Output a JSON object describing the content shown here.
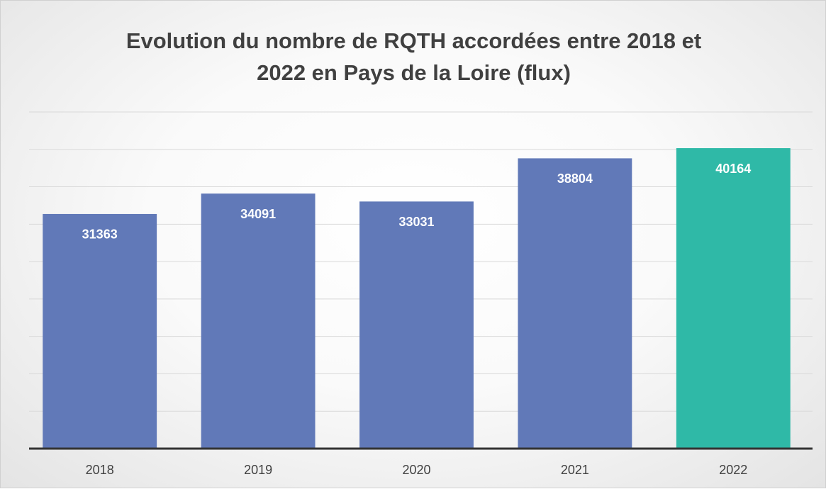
{
  "chart_data": {
    "type": "bar",
    "title": "Evolution du nombre de RQTH accordées entre 2018 et 2022 en Pays de la Loire (flux)",
    "categories": [
      "2018",
      "2019",
      "2020",
      "2021",
      "2022"
    ],
    "values": [
      31363,
      34091,
      33031,
      38804,
      40164
    ],
    "colors": [
      "#6179b8",
      "#6179b8",
      "#6179b8",
      "#6179b8",
      "#2fb9a7"
    ],
    "ylim": [
      0,
      45000
    ],
    "yticks": [
      0,
      5000,
      10000,
      15000,
      20000,
      25000,
      30000,
      35000,
      40000,
      45000
    ],
    "grid": true
  }
}
